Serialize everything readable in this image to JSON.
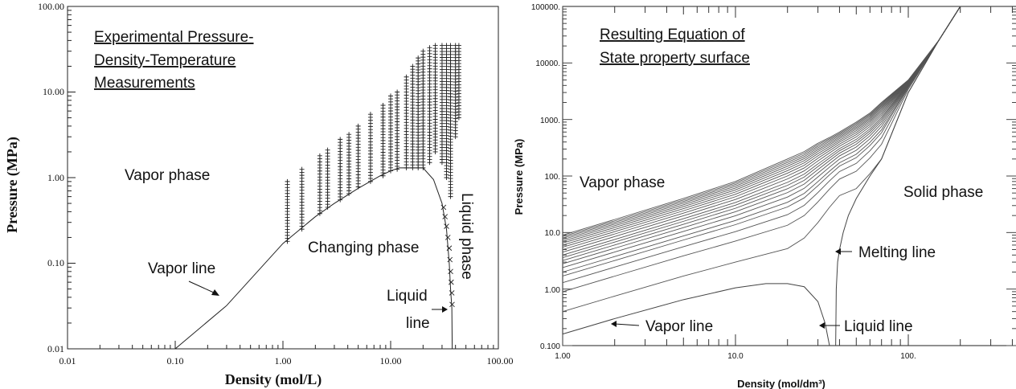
{
  "chart_data": [
    {
      "type": "scatter",
      "title": "Experimental Pressure-Density-Temperature Measurements",
      "title_lines": [
        "Experimental Pressure-",
        "Density-Temperature",
        "Measurements"
      ],
      "xlabel": "Density (mol/L)",
      "ylabel": "Pressure (MPa)",
      "xscale": "log",
      "yscale": "log",
      "xlim": [
        0.01,
        100
      ],
      "ylim": [
        0.01,
        100
      ],
      "xticks": [
        "0.01",
        "0.10",
        "1.00",
        "10.00",
        "100.00"
      ],
      "yticks": [
        "0.01",
        "0.10",
        "1.00",
        "10.00",
        "100.00"
      ],
      "annotations": {
        "vapor_phase": "Vapor phase",
        "changing_phase": "Changing phase",
        "vapor_line": "Vapor line",
        "liquid_line_1": "Liquid",
        "liquid_line_2": "line",
        "liquid_phase": "Liquid phase"
      },
      "saturation_curve": [
        [
          0.1,
          0.01
        ],
        [
          0.3,
          0.032
        ],
        [
          1,
          0.17
        ],
        [
          2,
          0.35
        ],
        [
          3,
          0.5
        ],
        [
          5,
          0.75
        ],
        [
          8,
          1.05
        ],
        [
          10,
          1.2
        ],
        [
          12,
          1.3
        ],
        [
          20,
          1.3
        ],
        [
          25,
          0.95
        ],
        [
          30,
          0.5
        ],
        [
          33,
          0.25
        ],
        [
          35,
          0.1
        ],
        [
          36,
          0.05
        ],
        [
          37,
          0.03
        ],
        [
          37.3,
          0.01
        ]
      ],
      "liquid_points": [
        [
          31,
          0.45
        ],
        [
          32,
          0.35
        ],
        [
          33,
          0.27
        ],
        [
          34,
          0.2
        ],
        [
          35,
          0.15
        ],
        [
          35.5,
          0.11
        ],
        [
          36,
          0.08
        ],
        [
          36.5,
          0.06
        ],
        [
          37,
          0.045
        ],
        [
          37.2,
          0.033
        ]
      ],
      "measurement_columns": [
        {
          "density": 1.1,
          "p_min": 0.18,
          "p_max": 0.9
        },
        {
          "density": 1.5,
          "p_min": 0.25,
          "p_max": 1.25
        },
        {
          "density": 2.2,
          "p_min": 0.38,
          "p_max": 1.8
        },
        {
          "density": 2.6,
          "p_min": 0.45,
          "p_max": 2.1
        },
        {
          "density": 3.4,
          "p_min": 0.55,
          "p_max": 2.8
        },
        {
          "density": 4.1,
          "p_min": 0.65,
          "p_max": 3.2
        },
        {
          "density": 5.0,
          "p_min": 0.78,
          "p_max": 4.0
        },
        {
          "density": 6.5,
          "p_min": 0.9,
          "p_max": 5.5
        },
        {
          "density": 8.5,
          "p_min": 1.05,
          "p_max": 7.0
        },
        {
          "density": 10.0,
          "p_min": 1.2,
          "p_max": 9.0
        },
        {
          "density": 11.5,
          "p_min": 1.25,
          "p_max": 10.0
        },
        {
          "density": 14,
          "p_min": 1.3,
          "p_max": 15
        },
        {
          "density": 16,
          "p_min": 1.3,
          "p_max": 20
        },
        {
          "density": 18,
          "p_min": 1.3,
          "p_max": 25
        },
        {
          "density": 20,
          "p_min": 1.3,
          "p_max": 30
        },
        {
          "density": 23,
          "p_min": 1.5,
          "p_max": 33
        },
        {
          "density": 26,
          "p_min": 2.0,
          "p_max": 35
        },
        {
          "density": 30,
          "p_min": 1.5,
          "p_max": 35
        },
        {
          "density": 33,
          "p_min": 1.0,
          "p_max": 35
        },
        {
          "density": 36,
          "p_min": 0.6,
          "p_max": 35
        },
        {
          "density": 40,
          "p_min": 3.0,
          "p_max": 35
        },
        {
          "density": 43,
          "p_min": 5.0,
          "p_max": 35
        }
      ]
    },
    {
      "type": "line",
      "title": "Resulting Equation of State property surface",
      "title_lines": [
        "Resulting Equation of",
        "State property surface"
      ],
      "xlabel": "Density (mol/dm³)",
      "ylabel": "Pressure (MPa)",
      "xscale": "log",
      "yscale": "log",
      "xlim": [
        1,
        400
      ],
      "ylim": [
        0.1,
        100000
      ],
      "xticks": [
        "1.00",
        "10.0",
        "100."
      ],
      "yticks": [
        "0.100",
        "1.00",
        "10.0",
        "100.",
        "1000.",
        "10000.",
        "100000."
      ],
      "annotations": {
        "vapor_phase": "Vapor phase",
        "solid_phase": "Solid phase",
        "melting_line": "Melting line",
        "vapor_line": "Vapor line",
        "liquid_line": "Liquid line"
      },
      "density_grid": [
        1,
        2,
        5,
        10,
        20,
        25,
        30,
        35,
        40,
        50,
        60,
        70,
        100,
        150,
        200
      ],
      "lowest_isotherm": [
        0.4,
        0.75,
        1.7,
        3,
        5.2,
        8,
        15,
        28,
        45,
        60,
        110,
        200,
        3000,
        25000,
        100000
      ],
      "highest_isotherm": [
        9,
        17,
        40,
        80,
        200,
        270,
        380,
        480,
        600,
        900,
        1300,
        2000,
        5000,
        25000,
        100000
      ],
      "isotherm_start_pressures": [
        0.4,
        0.9,
        1.3,
        1.7,
        2.0,
        2.4,
        2.8,
        3.2,
        3.6,
        4.0,
        4.5,
        5.0,
        5.5,
        6.0,
        6.5,
        7.0,
        7.5,
        8.0,
        8.5,
        9.0
      ],
      "saturation_curve": [
        [
          1,
          0.16
        ],
        [
          2,
          0.3
        ],
        [
          5,
          0.65
        ],
        [
          10,
          1.05
        ],
        [
          15,
          1.25
        ],
        [
          20,
          1.25
        ],
        [
          25,
          1.1
        ],
        [
          30,
          0.6
        ],
        [
          33,
          0.25
        ],
        [
          35,
          0.1
        ]
      ],
      "melting_line": [
        [
          38,
          0.1
        ],
        [
          38.3,
          1
        ],
        [
          39,
          3
        ],
        [
          40,
          5
        ],
        [
          42,
          10
        ],
        [
          45,
          20
        ],
        [
          50,
          40
        ],
        [
          60,
          100
        ],
        [
          70,
          200
        ],
        [
          100,
          3000
        ],
        [
          150,
          25000
        ],
        [
          200,
          100000
        ]
      ]
    }
  ]
}
